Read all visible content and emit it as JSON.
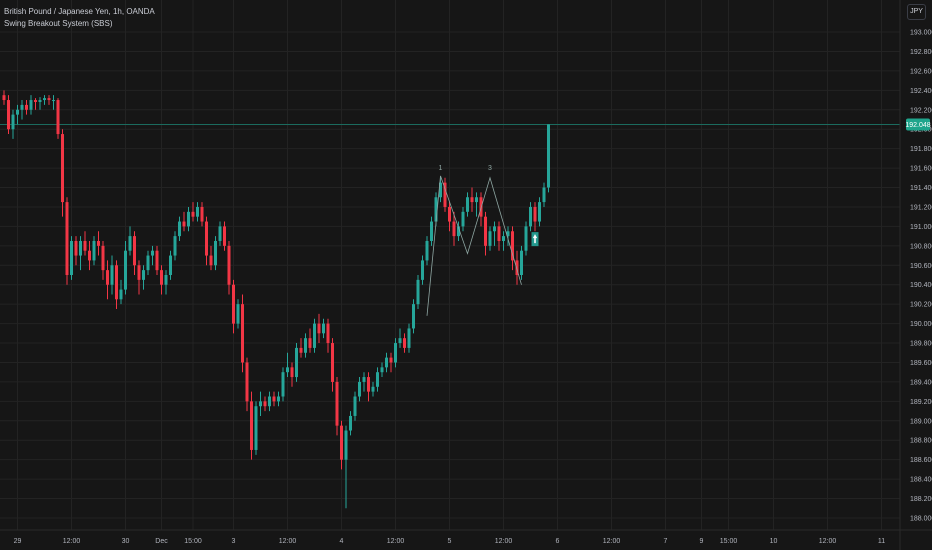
{
  "legend": {
    "symbol": "British Pound / Japanese Yen, 1h, OANDA",
    "indicator": "Swing Breakout System (SBS)"
  },
  "currency_button": "JPY",
  "colors": {
    "background": "#161616",
    "grid": "#232323",
    "up": "#26a69a",
    "down": "#f23645",
    "pattern": "#8fa7a3",
    "price_line": "#1b6b5e",
    "price_tag": "#1fa58c"
  },
  "chart_data": {
    "type": "candlestick",
    "title": "British Pound / Japanese Yen, 1h, OANDA",
    "indicator": "Swing Breakout System (SBS)",
    "ylim": [
      188.0,
      193.2
    ],
    "y_ticks": [
      "193.000",
      "192.800",
      "192.600",
      "192.400",
      "192.200",
      "192.000",
      "191.800",
      "191.600",
      "191.400",
      "191.200",
      "191.000",
      "190.800",
      "190.600",
      "190.400",
      "190.200",
      "190.000",
      "189.800",
      "189.600",
      "189.400",
      "189.200",
      "189.000",
      "188.800",
      "188.600",
      "188.400",
      "188.200",
      "188.000"
    ],
    "x_ticks": [
      {
        "label": "29",
        "i": 3
      },
      {
        "label": "12:00",
        "i": 15
      },
      {
        "label": "30",
        "i": 27
      },
      {
        "label": "Dec",
        "i": 35
      },
      {
        "label": "15:00",
        "i": 42
      },
      {
        "label": "3",
        "i": 51
      },
      {
        "label": "12:00",
        "i": 63
      },
      {
        "label": "4",
        "i": 75
      },
      {
        "label": "12:00",
        "i": 87
      },
      {
        "label": "5",
        "i": 99
      },
      {
        "label": "12:00",
        "i": 111
      },
      {
        "label": "6",
        "i": 123
      },
      {
        "label": "12:00",
        "i": 135
      },
      {
        "label": "7",
        "i": 147
      },
      {
        "label": "9",
        "i": 155
      },
      {
        "label": "15:00",
        "i": 161
      },
      {
        "label": "10",
        "i": 171
      },
      {
        "label": "12:00",
        "i": 183
      },
      {
        "label": "11",
        "i": 195
      }
    ],
    "last_price": "192.048",
    "last_value": 192.048,
    "pattern_labels": [
      {
        "text": "1",
        "i": 97,
        "y": 191.58
      },
      {
        "text": "3",
        "i": 108,
        "y": 191.58
      }
    ],
    "pattern_line": [
      {
        "i": 94,
        "y": 190.08
      },
      {
        "i": 97,
        "y": 191.52
      },
      {
        "i": 103,
        "y": 190.72
      },
      {
        "i": 108,
        "y": 191.5
      },
      {
        "i": 115,
        "y": 190.4
      }
    ],
    "marker": {
      "i": 118,
      "y": 190.9
    },
    "candles": [
      [
        192.35,
        192.4,
        192.25,
        192.3
      ],
      [
        192.3,
        192.35,
        191.95,
        192.0
      ],
      [
        192.0,
        192.2,
        191.9,
        192.15
      ],
      [
        192.15,
        192.25,
        192.05,
        192.2
      ],
      [
        192.2,
        192.3,
        192.1,
        192.25
      ],
      [
        192.25,
        192.3,
        192.15,
        192.2
      ],
      [
        192.2,
        192.35,
        192.15,
        192.3
      ],
      [
        192.3,
        192.32,
        192.2,
        192.28
      ],
      [
        192.28,
        192.33,
        192.2,
        192.3
      ],
      [
        192.3,
        192.35,
        192.25,
        192.32
      ],
      [
        192.32,
        192.35,
        192.25,
        192.3
      ],
      [
        192.3,
        192.35,
        192.2,
        192.3
      ],
      [
        192.3,
        192.32,
        191.9,
        191.95
      ],
      [
        191.95,
        192.0,
        191.1,
        191.25
      ],
      [
        191.25,
        191.3,
        190.4,
        190.5
      ],
      [
        190.5,
        190.9,
        190.45,
        190.85
      ],
      [
        190.85,
        190.9,
        190.6,
        190.7
      ],
      [
        190.7,
        190.9,
        190.55,
        190.85
      ],
      [
        190.85,
        190.95,
        190.7,
        190.75
      ],
      [
        190.75,
        190.85,
        190.55,
        190.65
      ],
      [
        190.65,
        190.9,
        190.6,
        190.85
      ],
      [
        190.85,
        190.95,
        190.7,
        190.8
      ],
      [
        190.8,
        190.85,
        190.45,
        190.55
      ],
      [
        190.55,
        190.65,
        190.25,
        190.4
      ],
      [
        190.4,
        190.7,
        190.3,
        190.6
      ],
      [
        190.6,
        190.65,
        190.15,
        190.25
      ],
      [
        190.25,
        190.45,
        190.2,
        190.35
      ],
      [
        190.35,
        190.85,
        190.3,
        190.75
      ],
      [
        190.75,
        191.0,
        190.7,
        190.9
      ],
      [
        190.9,
        190.95,
        190.5,
        190.6
      ],
      [
        190.6,
        190.65,
        190.3,
        190.45
      ],
      [
        190.45,
        190.6,
        190.35,
        190.55
      ],
      [
        190.55,
        190.75,
        190.5,
        190.7
      ],
      [
        190.7,
        190.8,
        190.6,
        190.75
      ],
      [
        190.75,
        190.8,
        190.5,
        190.55
      ],
      [
        190.55,
        190.6,
        190.3,
        190.4
      ],
      [
        190.4,
        190.55,
        190.3,
        190.5
      ],
      [
        190.5,
        190.75,
        190.45,
        190.7
      ],
      [
        190.7,
        190.95,
        190.65,
        190.9
      ],
      [
        190.9,
        191.1,
        190.85,
        191.05
      ],
      [
        191.05,
        191.15,
        190.95,
        191.0
      ],
      [
        191.0,
        191.2,
        190.95,
        191.15
      ],
      [
        191.15,
        191.25,
        191.05,
        191.1
      ],
      [
        191.1,
        191.25,
        191.05,
        191.2
      ],
      [
        191.2,
        191.25,
        191.0,
        191.05
      ],
      [
        191.05,
        191.1,
        190.6,
        190.7
      ],
      [
        190.7,
        190.8,
        190.55,
        190.6
      ],
      [
        190.6,
        190.9,
        190.55,
        190.85
      ],
      [
        190.85,
        191.05,
        190.8,
        191.0
      ],
      [
        191.0,
        191.05,
        190.75,
        190.8
      ],
      [
        190.8,
        190.85,
        190.3,
        190.4
      ],
      [
        190.4,
        190.45,
        189.9,
        190.0
      ],
      [
        190.0,
        190.25,
        189.95,
        190.2
      ],
      [
        190.2,
        190.3,
        189.5,
        189.6
      ],
      [
        189.6,
        189.65,
        189.1,
        189.2
      ],
      [
        189.2,
        189.3,
        188.6,
        188.7
      ],
      [
        188.7,
        189.2,
        188.65,
        189.15
      ],
      [
        189.15,
        189.3,
        189.05,
        189.2
      ],
      [
        189.2,
        189.25,
        189.1,
        189.15
      ],
      [
        189.15,
        189.3,
        189.1,
        189.25
      ],
      [
        189.25,
        189.3,
        189.15,
        189.2
      ],
      [
        189.2,
        189.3,
        189.15,
        189.25
      ],
      [
        189.25,
        189.55,
        189.2,
        189.5
      ],
      [
        189.5,
        189.7,
        189.45,
        189.55
      ],
      [
        189.55,
        189.6,
        189.35,
        189.45
      ],
      [
        189.45,
        189.8,
        189.4,
        189.75
      ],
      [
        189.75,
        189.85,
        189.65,
        189.7
      ],
      [
        189.7,
        189.9,
        189.65,
        189.85
      ],
      [
        189.85,
        189.95,
        189.7,
        189.75
      ],
      [
        189.75,
        190.05,
        189.7,
        190.0
      ],
      [
        190.0,
        190.1,
        189.8,
        189.9
      ],
      [
        189.9,
        190.05,
        189.85,
        190.0
      ],
      [
        190.0,
        190.05,
        189.7,
        189.8
      ],
      [
        189.8,
        189.85,
        189.3,
        189.4
      ],
      [
        189.4,
        189.45,
        188.85,
        188.95
      ],
      [
        188.95,
        189.0,
        188.5,
        188.6
      ],
      [
        188.6,
        188.95,
        188.1,
        188.9
      ],
      [
        188.9,
        189.1,
        188.85,
        189.05
      ],
      [
        189.05,
        189.3,
        189.0,
        189.25
      ],
      [
        189.25,
        189.45,
        189.2,
        189.4
      ],
      [
        189.4,
        189.5,
        189.3,
        189.45
      ],
      [
        189.45,
        189.5,
        189.2,
        189.3
      ],
      [
        189.3,
        189.4,
        189.25,
        189.35
      ],
      [
        189.35,
        189.55,
        189.3,
        189.5
      ],
      [
        189.5,
        189.6,
        189.45,
        189.55
      ],
      [
        189.55,
        189.7,
        189.5,
        189.65
      ],
      [
        189.65,
        189.7,
        189.5,
        189.6
      ],
      [
        189.6,
        189.85,
        189.55,
        189.8
      ],
      [
        189.8,
        189.95,
        189.75,
        189.85
      ],
      [
        189.85,
        189.9,
        189.7,
        189.75
      ],
      [
        189.75,
        190.0,
        189.7,
        189.95
      ],
      [
        189.95,
        190.25,
        189.9,
        190.2
      ],
      [
        190.2,
        190.5,
        190.15,
        190.45
      ],
      [
        190.45,
        190.7,
        190.4,
        190.65
      ],
      [
        190.65,
        190.9,
        190.6,
        190.85
      ],
      [
        190.85,
        191.1,
        190.8,
        191.05
      ],
      [
        191.05,
        191.35,
        191.0,
        191.3
      ],
      [
        191.3,
        191.5,
        191.25,
        191.45
      ],
      [
        191.45,
        191.5,
        191.15,
        191.2
      ],
      [
        191.2,
        191.25,
        190.95,
        191.05
      ],
      [
        191.05,
        191.15,
        190.8,
        190.9
      ],
      [
        190.9,
        191.05,
        190.85,
        191.0
      ],
      [
        191.0,
        191.2,
        190.95,
        191.15
      ],
      [
        191.15,
        191.35,
        191.1,
        191.3
      ],
      [
        191.3,
        191.4,
        191.15,
        191.25
      ],
      [
        191.25,
        191.35,
        191.1,
        191.3
      ],
      [
        191.3,
        191.35,
        191.0,
        191.1
      ],
      [
        191.1,
        191.15,
        190.7,
        190.8
      ],
      [
        190.8,
        191.0,
        190.75,
        190.95
      ],
      [
        190.95,
        191.05,
        190.8,
        191.0
      ],
      [
        191.0,
        191.05,
        190.75,
        190.85
      ],
      [
        190.85,
        190.95,
        190.75,
        190.9
      ],
      [
        190.9,
        191.0,
        190.8,
        190.95
      ],
      [
        190.95,
        191.0,
        190.55,
        190.65
      ],
      [
        190.65,
        190.75,
        190.4,
        190.5
      ],
      [
        190.5,
        190.8,
        190.45,
        190.75
      ],
      [
        190.75,
        191.05,
        190.7,
        191.0
      ],
      [
        191.0,
        191.25,
        190.95,
        191.2
      ],
      [
        191.2,
        191.25,
        190.95,
        191.05
      ],
      [
        191.05,
        191.3,
        191.0,
        191.25
      ],
      [
        191.25,
        191.45,
        191.2,
        191.4
      ],
      [
        191.4,
        192.05,
        191.35,
        192.05
      ]
    ]
  }
}
